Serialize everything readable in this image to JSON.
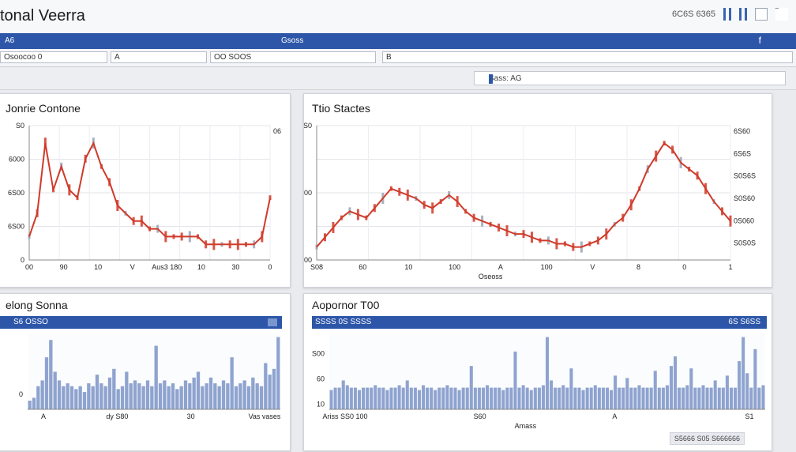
{
  "window": {
    "title": "tonal Veerra",
    "header_meta": "6C6S 6365"
  },
  "menubar": {
    "left": "A6",
    "center": "Gsoss",
    "right": "f"
  },
  "toolbar": {
    "field1": "Osoocoo 0",
    "field2": "A",
    "field3": "OO SOOS",
    "field4": "B"
  },
  "addressbar": {
    "search_text": "Sass: AG"
  },
  "panels": {
    "top_left": {
      "title": "Jonrie Contone"
    },
    "top_right": {
      "title": "Ttio Stactes"
    },
    "bottom_left": {
      "title": "elong Sonna",
      "band_label": "S6 OSSO"
    },
    "bottom_right": {
      "title": "Aopornor T00",
      "band_label": "SSSS 0S SSSS",
      "band_right": "6S S6SS"
    }
  },
  "footer": {
    "badge": "S5666 S05 S666666"
  },
  "colors": {
    "accent": "#2d56a8",
    "line": "#d03a2a"
  },
  "chart_data": [
    {
      "type": "line",
      "panel": "top_left",
      "x": [
        0,
        1,
        2,
        3,
        4,
        5,
        6,
        7,
        8,
        9,
        10,
        11,
        12,
        13,
        14,
        15,
        16,
        17,
        18,
        19,
        20,
        21,
        22,
        23,
        24,
        25,
        26,
        27,
        28,
        29,
        30
      ],
      "series": [
        {
          "values": [
            3,
            6,
            15,
            9,
            12,
            9,
            8,
            13,
            15,
            12,
            10,
            7,
            6,
            5,
            5,
            4,
            4,
            3,
            3,
            3,
            3,
            3,
            2,
            2,
            2,
            2,
            2,
            2,
            2,
            3,
            8
          ]
        }
      ],
      "ytick_labels": [
        "0",
        "6S00",
        "6S00",
        "6000",
        "S0"
      ],
      "xtick_labels": [
        "00",
        "90",
        "10",
        "V",
        "Aus3 180",
        "10",
        "30",
        "0"
      ],
      "y2tick_labels": [
        "06"
      ],
      "grid": true
    },
    {
      "type": "line",
      "panel": "top_right",
      "x": [
        0,
        1,
        2,
        3,
        4,
        5,
        6,
        7,
        8,
        9,
        10,
        11,
        12,
        13,
        14,
        15,
        16,
        17,
        18,
        19,
        20,
        21,
        22,
        23,
        24,
        25,
        26,
        27,
        28,
        29,
        30,
        31,
        32,
        33,
        34,
        35,
        36,
        37,
        38,
        39,
        40,
        41,
        42,
        43,
        44,
        45,
        46,
        47,
        48,
        49,
        50
      ],
      "series": [
        {
          "values": [
            4,
            7,
            10,
            13,
            15,
            14,
            13,
            16,
            19,
            22,
            21,
            20,
            19,
            17,
            16,
            18,
            20,
            18,
            15,
            13,
            12,
            11,
            10,
            9,
            8,
            8,
            7,
            6,
            6,
            5,
            5,
            4,
            4,
            5,
            6,
            8,
            11,
            13,
            17,
            22,
            28,
            32,
            36,
            34,
            30,
            28,
            26,
            22,
            18,
            15,
            12
          ]
        }
      ],
      "ytick_labels": [
        "000",
        "600",
        "S0"
      ],
      "xtick_labels": [
        "S08",
        "60",
        "10",
        "100",
        "A",
        "100",
        "V",
        "8",
        "0",
        "1"
      ],
      "xlabel": "Oseoss",
      "y2tick_labels": [
        "6S60",
        "6S6S",
        "S0S6S",
        "S0S60",
        "0S060",
        "S0S0S"
      ],
      "grid": true
    },
    {
      "type": "bar",
      "panel": "bottom_left",
      "values": [
        3,
        4,
        8,
        10,
        18,
        24,
        13,
        10,
        8,
        9,
        8,
        7,
        8,
        6,
        9,
        8,
        12,
        9,
        8,
        11,
        14,
        7,
        8,
        13,
        9,
        10,
        9,
        8,
        10,
        8,
        22,
        9,
        10,
        8,
        9,
        7,
        8,
        10,
        9,
        11,
        13,
        8,
        9,
        11,
        9,
        8,
        10,
        9,
        18,
        8,
        9,
        10,
        8,
        11,
        9,
        8,
        16,
        12,
        14,
        25
      ],
      "ytick_labels": [
        "0"
      ],
      "xtick_labels": [
        "A",
        "dy S80",
        "30",
        "Vas vases"
      ]
    },
    {
      "type": "bar",
      "panel": "bottom_right",
      "values": [
        8,
        9,
        9,
        12,
        10,
        9,
        9,
        8,
        9,
        9,
        9,
        10,
        9,
        9,
        8,
        9,
        9,
        10,
        9,
        12,
        9,
        9,
        8,
        10,
        9,
        9,
        8,
        9,
        9,
        10,
        9,
        9,
        8,
        9,
        9,
        18,
        9,
        9,
        9,
        10,
        9,
        9,
        9,
        8,
        9,
        9,
        24,
        9,
        10,
        9,
        8,
        9,
        9,
        10,
        30,
        12,
        9,
        9,
        10,
        9,
        17,
        9,
        9,
        8,
        9,
        9,
        10,
        9,
        9,
        9,
        8,
        14,
        9,
        9,
        13,
        9,
        9,
        10,
        9,
        9,
        9,
        16,
        9,
        9,
        10,
        18,
        22,
        9,
        9,
        10,
        17,
        9,
        9,
        10,
        9,
        9,
        12,
        9,
        9,
        14,
        9,
        9,
        20,
        30,
        15,
        9,
        25,
        9,
        10
      ],
      "ytick_labels": [
        "10",
        "60",
        "S00"
      ],
      "xtick_labels": [
        "Ariss SS0 100",
        "S60",
        "A",
        "S1"
      ],
      "xlabel": "Amass"
    }
  ]
}
